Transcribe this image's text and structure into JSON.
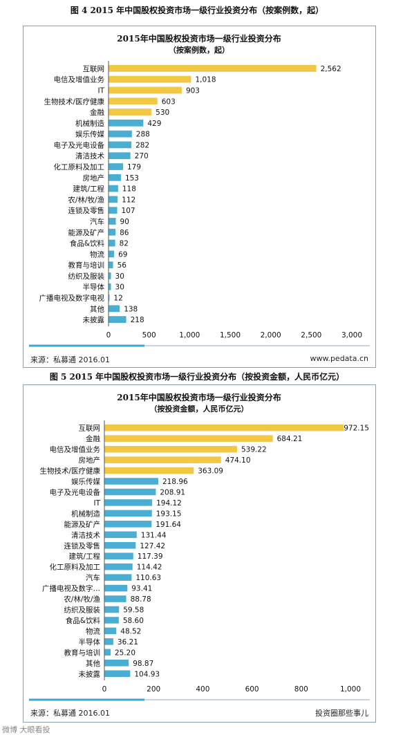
{
  "figure_titles": {
    "fig4": "图 4 2015 年中国股权投资市场一级行业投资分布（按案例数，起）",
    "fig5": "图 5 2015 年中国股权投资市场一级行业投资分布（按投资金额，人民币亿元）"
  },
  "footers": {
    "fig4_source": "来源：私募通 2016.01",
    "fig4_site": "www.pedata.cn",
    "fig5_source": "来源：私募通 2016.01",
    "fig5_site": "投资圈那些事儿"
  },
  "corner_watermark": "微博 大眼看投",
  "colors": {
    "gold": "#f2c744",
    "blue": "#4aaed3",
    "frame": "#8aa0b4",
    "accent_line": "#3aa7d0"
  },
  "chart_data": [
    {
      "type": "bar",
      "orientation": "horizontal",
      "title": "2015年中国股权投资市场一级行业投资分布",
      "subtitle": "（按案例数，起）",
      "categories": [
        "互联网",
        "电信及增值业务",
        "IT",
        "生物技术/医疗健康",
        "金融",
        "机械制造",
        "娱乐传媒",
        "电子及光电设备",
        "清洁技术",
        "化工原料及加工",
        "房地产",
        "建筑/工程",
        "农/林/牧/渔",
        "连锁及零售",
        "汽车",
        "能源及矿产",
        "食品&饮料",
        "物流",
        "教育与培训",
        "纺织及服装",
        "半导体",
        "广播电视及数字电视",
        "其他",
        "未披露"
      ],
      "values": [
        2562,
        1018,
        903,
        603,
        530,
        429,
        288,
        282,
        270,
        179,
        153,
        118,
        112,
        107,
        90,
        86,
        82,
        69,
        56,
        30,
        30,
        12,
        138,
        218
      ],
      "value_labels": [
        "2,562",
        "1,018",
        "903",
        "603",
        "530",
        "429",
        "288",
        "282",
        "270",
        "179",
        "153",
        "118",
        "112",
        "107",
        "90",
        "86",
        "82",
        "69",
        "56",
        "30",
        "30",
        "12",
        "138",
        "218"
      ],
      "highlight_count": 5,
      "xlim": [
        0,
        3000
      ],
      "xticks": [
        "0",
        "500",
        "1,000",
        "1,500",
        "2,000",
        "2,500",
        "3,000"
      ],
      "grid": false
    },
    {
      "type": "bar",
      "orientation": "horizontal",
      "title": "2015年中国股权投资市场一级行业投资分布",
      "subtitle": "（按投资金额，人民币亿元）",
      "categories": [
        "互联网",
        "金融",
        "电信及增值业务",
        "房地产",
        "生物技术/医疗健康",
        "娱乐传媒",
        "电子及光电设备",
        "IT",
        "机械制造",
        "能源及矿产",
        "清洁技术",
        "连锁及零售",
        "建筑/工程",
        "化工原料及加工",
        "汽车",
        "广播电视及数字…",
        "农/林/牧/渔",
        "纺织及服装",
        "食品&饮料",
        "物流",
        "半导体",
        "教育与培训",
        "其他",
        "未披露"
      ],
      "values": [
        972.15,
        684.21,
        539.22,
        474.1,
        363.09,
        218.96,
        208.91,
        194.12,
        193.15,
        191.64,
        131.44,
        127.42,
        117.39,
        114.42,
        110.63,
        93.41,
        88.78,
        59.58,
        58.6,
        48.52,
        36.21,
        25.2,
        98.87,
        104.93
      ],
      "value_labels": [
        "972.15",
        "684.21",
        "539.22",
        "474.10",
        "363.09",
        "218.96",
        "208.91",
        "194.12",
        "193.15",
        "191.64",
        "131.44",
        "127.42",
        "117.39",
        "114.42",
        "110.63",
        "93.41",
        "88.78",
        "59.58",
        "58.60",
        "48.52",
        "36.21",
        "25.20",
        "98.87",
        "104.93"
      ],
      "highlight_count": 5,
      "xlim": [
        0,
        1000
      ],
      "xticks": [
        "0",
        "200",
        "400",
        "600",
        "800",
        "1,000"
      ],
      "grid": false
    }
  ]
}
